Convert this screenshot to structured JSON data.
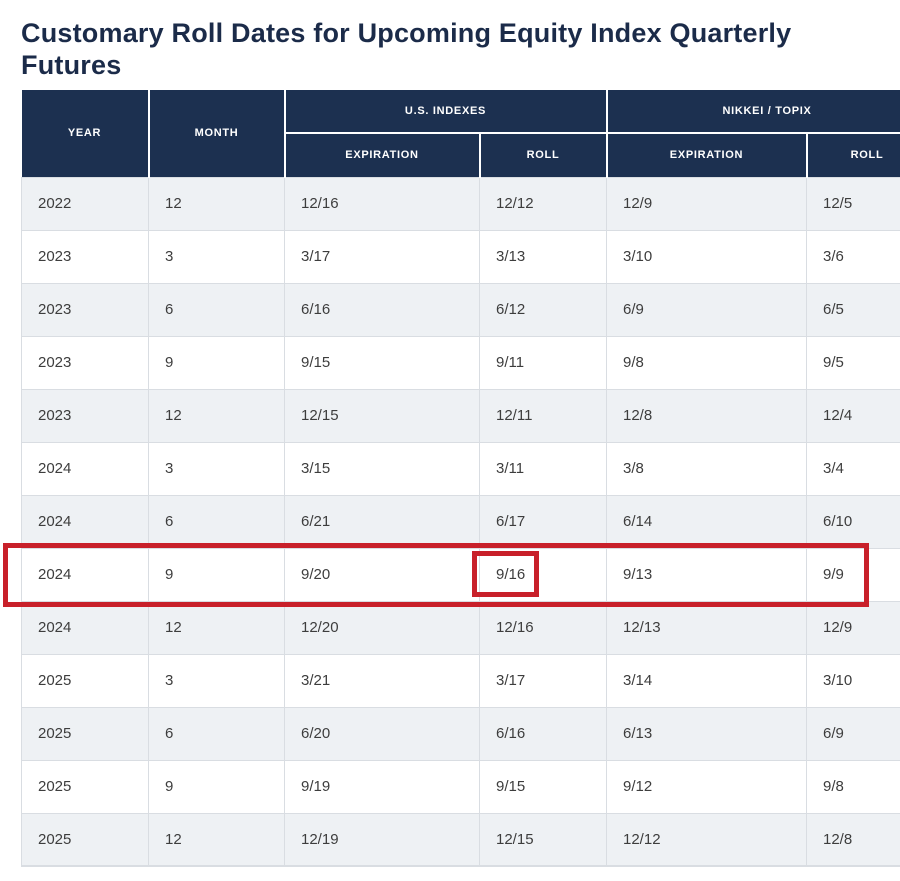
{
  "title": "Customary Roll Dates for Upcoming Equity Index Quarterly Futures",
  "colors": {
    "header_background": "#1c3050",
    "header_text": "#ffffff",
    "title_text": "#1b2b49",
    "row_alternate_background": "#eef1f4",
    "row_background": "#ffffff",
    "cell_text": "#3d3d3d",
    "grid_border": "#d9dde2",
    "annotation_red": "#c8202a"
  },
  "table": {
    "col_headers": {
      "year": "YEAR",
      "month": "MONTH",
      "us_group": "U.S. INDEXES",
      "nikkei_group": "NIKKEI / TOPIX",
      "expiration": "EXPIRATION",
      "roll": "ROLL"
    },
    "rows": [
      {
        "year": "2022",
        "month": "12",
        "us_expiration": "12/16",
        "us_roll": "12/12",
        "nikkei_expiration": "12/9",
        "nikkei_roll": "12/5"
      },
      {
        "year": "2023",
        "month": "3",
        "us_expiration": "3/17",
        "us_roll": "3/13",
        "nikkei_expiration": "3/10",
        "nikkei_roll": "3/6"
      },
      {
        "year": "2023",
        "month": "6",
        "us_expiration": "6/16",
        "us_roll": "6/12",
        "nikkei_expiration": "6/9",
        "nikkei_roll": "6/5"
      },
      {
        "year": "2023",
        "month": "9",
        "us_expiration": "9/15",
        "us_roll": "9/11",
        "nikkei_expiration": "9/8",
        "nikkei_roll": "9/5"
      },
      {
        "year": "2023",
        "month": "12",
        "us_expiration": "12/15",
        "us_roll": "12/11",
        "nikkei_expiration": "12/8",
        "nikkei_roll": "12/4"
      },
      {
        "year": "2024",
        "month": "3",
        "us_expiration": "3/15",
        "us_roll": "3/11",
        "nikkei_expiration": "3/8",
        "nikkei_roll": "3/4"
      },
      {
        "year": "2024",
        "month": "6",
        "us_expiration": "6/21",
        "us_roll": "6/17",
        "nikkei_expiration": "6/14",
        "nikkei_roll": "6/10"
      },
      {
        "year": "2024",
        "month": "9",
        "us_expiration": "9/20",
        "us_roll": "9/16",
        "nikkei_expiration": "9/13",
        "nikkei_roll": "9/9"
      },
      {
        "year": "2024",
        "month": "12",
        "us_expiration": "12/20",
        "us_roll": "12/16",
        "nikkei_expiration": "12/13",
        "nikkei_roll": "12/9"
      },
      {
        "year": "2025",
        "month": "3",
        "us_expiration": "3/21",
        "us_roll": "3/17",
        "nikkei_expiration": "3/14",
        "nikkei_roll": "3/10"
      },
      {
        "year": "2025",
        "month": "6",
        "us_expiration": "6/20",
        "us_roll": "6/16",
        "nikkei_expiration": "6/13",
        "nikkei_roll": "6/9"
      },
      {
        "year": "2025",
        "month": "9",
        "us_expiration": "9/19",
        "us_roll": "9/15",
        "nikkei_expiration": "9/12",
        "nikkei_roll": "9/8"
      },
      {
        "year": "2025",
        "month": "12",
        "us_expiration": "12/19",
        "us_roll": "12/15",
        "nikkei_expiration": "12/12",
        "nikkei_roll": "12/8"
      }
    ]
  },
  "annotation": {
    "highlighted_row_index": 7,
    "highlighted_row": {
      "year": "2024",
      "month": "9"
    },
    "highlighted_cell_column": "us_roll",
    "highlighted_cell_value": "9/16",
    "color": "#c8202a"
  }
}
